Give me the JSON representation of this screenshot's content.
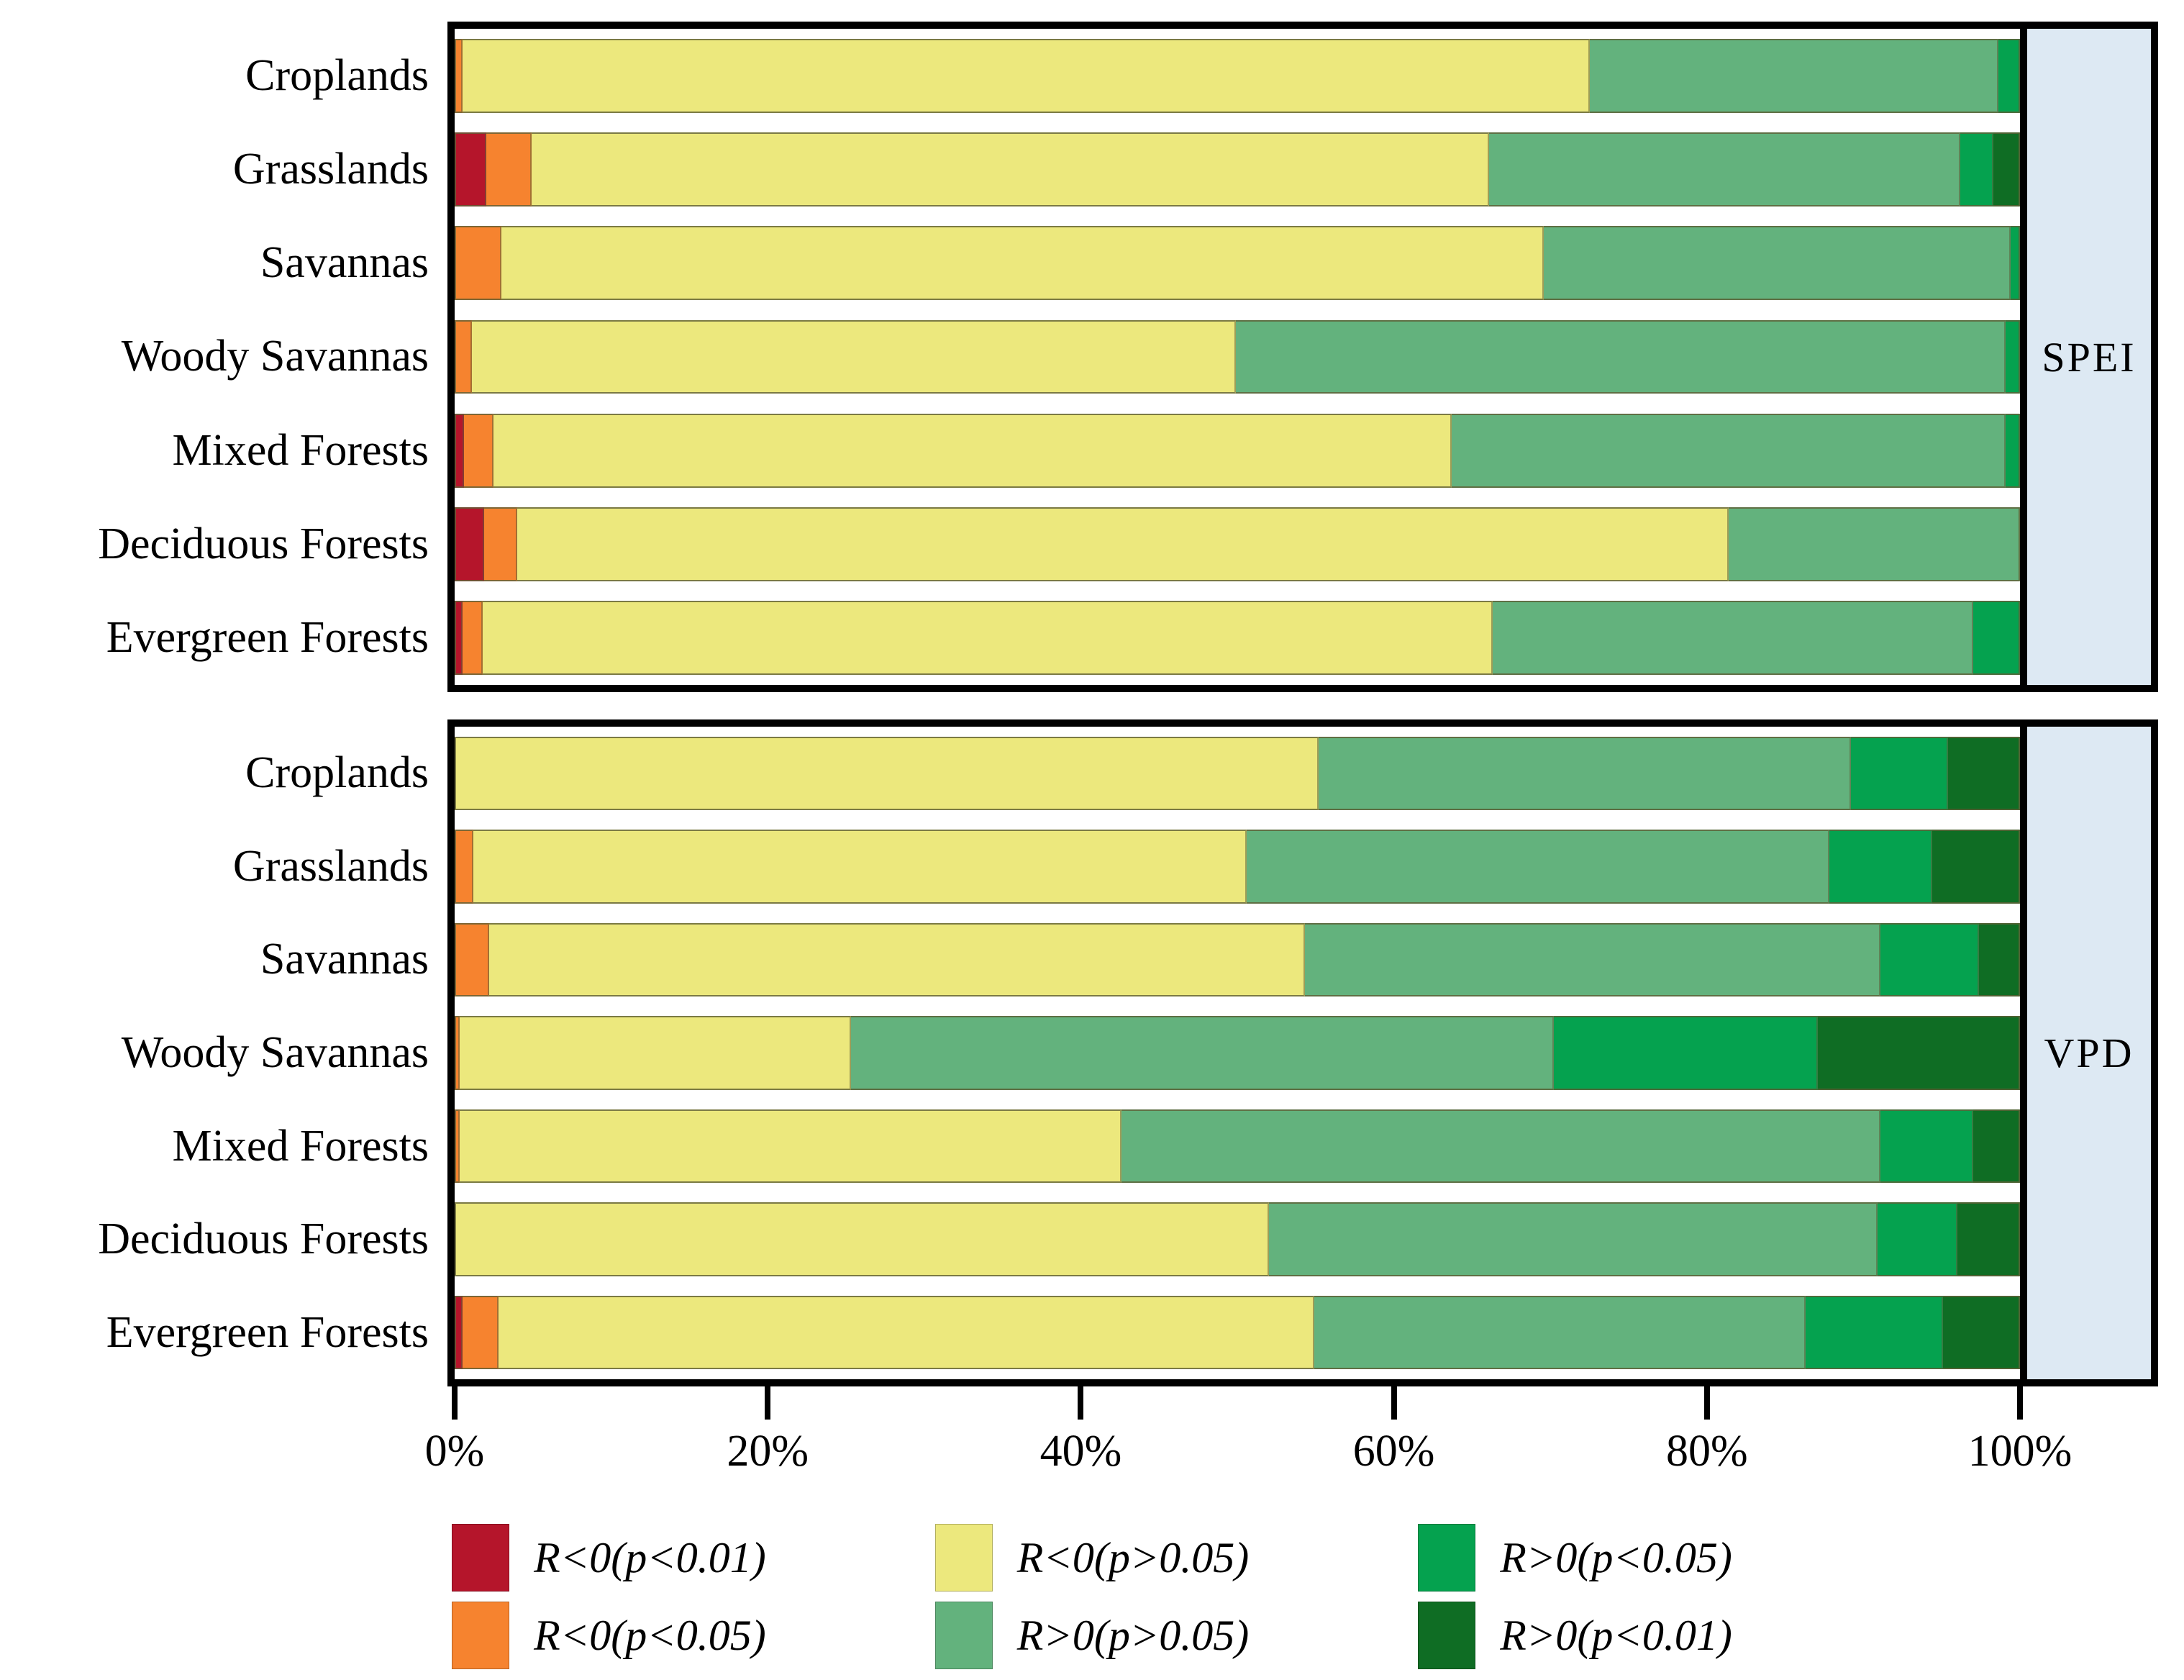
{
  "x_axis": {
    "min": 0,
    "max": 100,
    "ticks": [
      {
        "label": "0%",
        "value": 0
      },
      {
        "label": "20%",
        "value": 20
      },
      {
        "label": "40%",
        "value": 40
      },
      {
        "label": "60%",
        "value": 60
      },
      {
        "label": "80%",
        "value": 80
      },
      {
        "label": "100%",
        "value": 100
      }
    ]
  },
  "legend": {
    "position": "bottom",
    "columns": [
      [
        {
          "label": "R<0(p<0.01)",
          "color": "#b5152b"
        },
        {
          "label": "R<0(p<0.05)",
          "color": "#f6832f"
        }
      ],
      [
        {
          "label": "R<0(p>0.05)",
          "color": "#ece87d"
        },
        {
          "label": "R>0(p>0.05)",
          "color": "#63b27d"
        }
      ],
      [
        {
          "label": "R>0(p<0.05)",
          "color": "#05a24f"
        },
        {
          "label": "R>0(p<0.01)",
          "color": "#0f6d24"
        }
      ]
    ]
  },
  "chart_data": [
    {
      "type": "bar",
      "orientation": "horizontal",
      "stacked": true,
      "panel_label": "SPEI",
      "xlim": [
        0,
        100
      ],
      "grid": false,
      "categories": [
        "Croplands",
        "Grasslands",
        "Savannas",
        "Woody Savannas",
        "Mixed Forests",
        "Deciduous Forests",
        "Evergreen Forests"
      ],
      "series": [
        {
          "name": "R<0(p<0.01)",
          "color": "#b5152b",
          "values": [
            0,
            2.0,
            0,
            0,
            0.6,
            1.9,
            0.5
          ]
        },
        {
          "name": "R<0(p<0.05)",
          "color": "#f6832f",
          "values": [
            0.5,
            2.9,
            3.0,
            1.1,
            1.9,
            2.1,
            1.3
          ]
        },
        {
          "name": "R<0(p>0.05)",
          "color": "#ece87d",
          "values": [
            72.0,
            61.2,
            66.6,
            48.8,
            61.2,
            77.4,
            64.5
          ]
        },
        {
          "name": "R>0(p>0.05)",
          "color": "#63b27d",
          "values": [
            26.1,
            30.1,
            29.8,
            49.2,
            35.4,
            18.6,
            30.7
          ]
        },
        {
          "name": "R>0(p<0.05)",
          "color": "#05a24f",
          "values": [
            1.4,
            2.1,
            0.6,
            0.9,
            0.9,
            0,
            3.0
          ]
        },
        {
          "name": "R>0(p<0.01)",
          "color": "#0f6d24",
          "values": [
            0,
            1.7,
            0,
            0,
            0,
            0,
            0
          ]
        }
      ]
    },
    {
      "type": "bar",
      "orientation": "horizontal",
      "stacked": true,
      "panel_label": "VPD",
      "xlim": [
        0,
        100
      ],
      "grid": false,
      "categories": [
        "Croplands",
        "Grasslands",
        "Savannas",
        "Woody Savannas",
        "Mixed Forests",
        "Deciduous Forests",
        "Evergreen Forests"
      ],
      "series": [
        {
          "name": "R<0(p<0.01)",
          "color": "#b5152b",
          "values": [
            0,
            0,
            0,
            0,
            0,
            0,
            0.5
          ]
        },
        {
          "name": "R<0(p<0.05)",
          "color": "#f6832f",
          "values": [
            0,
            1.2,
            2.2,
            0.3,
            0.3,
            0,
            2.3
          ]
        },
        {
          "name": "R<0(p>0.05)",
          "color": "#ece87d",
          "values": [
            55.2,
            49.4,
            52.1,
            25.0,
            42.3,
            52.0,
            52.1
          ]
        },
        {
          "name": "R>0(p>0.05)",
          "color": "#63b27d",
          "values": [
            34.0,
            37.2,
            36.8,
            44.9,
            48.5,
            38.9,
            31.4
          ]
        },
        {
          "name": "R>0(p<0.05)",
          "color": "#05a24f",
          "values": [
            6.2,
            6.6,
            6.3,
            16.9,
            5.9,
            5.1,
            8.8
          ]
        },
        {
          "name": "R>0(p<0.01)",
          "color": "#0f6d24",
          "values": [
            4.6,
            5.6,
            2.6,
            12.9,
            3.0,
            4.0,
            4.9
          ]
        }
      ]
    }
  ]
}
